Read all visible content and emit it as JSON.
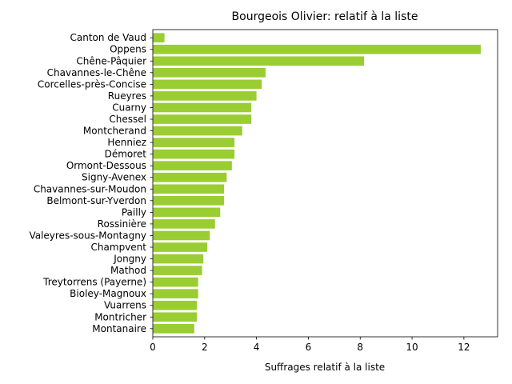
{
  "chart_data": {
    "type": "bar",
    "orientation": "horizontal",
    "title": "Bourgeois Olivier: relatif à la liste",
    "xlabel": "Suffrages relatif à la liste",
    "ylabel": "",
    "xlim": [
      0,
      13.3
    ],
    "xticks": [
      0,
      2,
      4,
      6,
      8,
      10,
      12
    ],
    "bar_color": "#9acd32",
    "grid": false,
    "categories": [
      "Canton de Vaud",
      "Oppens",
      "Chêne-Pâquier",
      "Chavannes-le-Chêne",
      "Corcelles-près-Concise",
      "Rueyres",
      "Cuarny",
      "Chessel",
      "Montcherand",
      "Henniez",
      "Démoret",
      "Ormont-Dessous",
      "Signy-Avenex",
      "Chavannes-sur-Moudon",
      "Belmont-sur-Yverdon",
      "Pailly",
      "Rossinière",
      "Valeyres-sous-Montagny",
      "Champvent",
      "Jongny",
      "Mathod",
      "Treytorrens (Payerne)",
      "Bioley-Magnoux",
      "Vuarrens",
      "Montricher",
      "Montanaire"
    ],
    "values": [
      0.45,
      12.65,
      8.15,
      4.35,
      4.2,
      4.0,
      3.8,
      3.8,
      3.45,
      3.15,
      3.15,
      3.05,
      2.85,
      2.75,
      2.75,
      2.6,
      2.4,
      2.2,
      2.1,
      1.95,
      1.9,
      1.75,
      1.75,
      1.7,
      1.7,
      1.6
    ]
  }
}
